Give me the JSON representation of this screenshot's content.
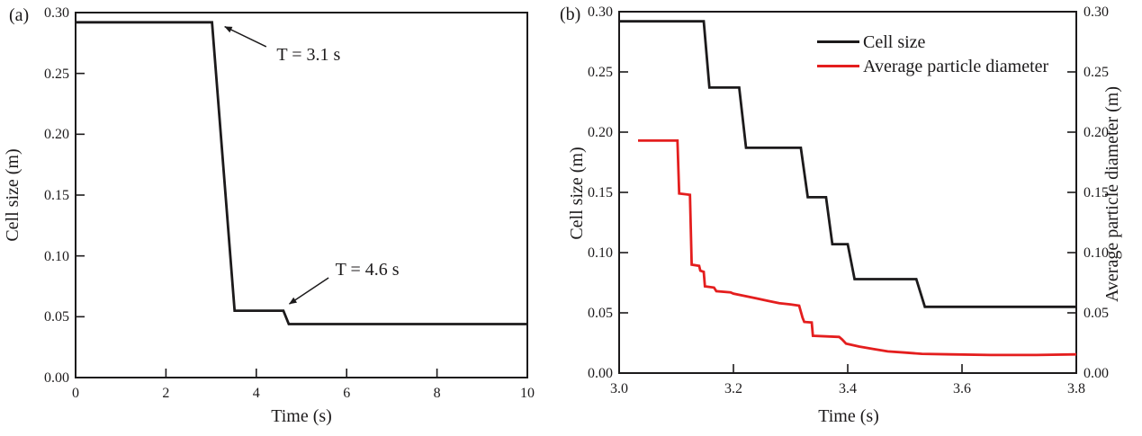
{
  "figure": {
    "panel_tags": [
      "(a)",
      "(b)"
    ],
    "background": "#ffffff",
    "frame_color": "#1c1a1b",
    "text_color": "#1c1a1b"
  },
  "chart_data": [
    {
      "id": "panel-a",
      "type": "line",
      "xlabel": "Time (s)",
      "ylabel": "Cell size (m)",
      "xlim": [
        0,
        10
      ],
      "ylim": [
        0,
        0.3
      ],
      "grid": false,
      "xticks": [
        0,
        2,
        4,
        6,
        8,
        10
      ],
      "xtick_labels": [
        "0",
        "2",
        "4",
        "6",
        "8",
        "10"
      ],
      "yticks": [
        0.0,
        0.05,
        0.1,
        0.15,
        0.2,
        0.25,
        0.3
      ],
      "ytick_labels": [
        "0.00",
        "0.05",
        "0.10",
        "0.15",
        "0.20",
        "0.25",
        "0.30"
      ],
      "right_axis": false,
      "series": [
        {
          "name": "Cell size",
          "color": "#1c1a1b",
          "points": [
            [
              0,
              0.292
            ],
            [
              3.02,
              0.292
            ],
            [
              3.52,
              0.055
            ],
            [
              4.6,
              0.055
            ],
            [
              4.72,
              0.044
            ],
            [
              10,
              0.044
            ]
          ]
        }
      ],
      "annotations": [
        {
          "text": "T = 3.1 s",
          "text_at": [
            4.45,
            0.265
          ],
          "arrow_from": [
            4.22,
            0.272
          ],
          "arrow_to": [
            3.3,
            0.2885
          ]
        },
        {
          "text": "T = 4.6 s",
          "text_at": [
            5.75,
            0.0885
          ],
          "arrow_from": [
            5.6,
            0.082
          ],
          "arrow_to": [
            4.73,
            0.0605
          ]
        }
      ]
    },
    {
      "id": "panel-b",
      "type": "line",
      "xlabel": "Time (s)",
      "ylabel": "Cell size (m)",
      "ylabel_right": "Average particle diameter (m)",
      "xlim": [
        3.0,
        3.8
      ],
      "ylim": [
        0,
        0.3
      ],
      "grid": false,
      "legend_position": "upper right",
      "xticks": [
        3.0,
        3.2,
        3.4,
        3.6,
        3.8
      ],
      "xtick_labels": [
        "3.0",
        "3.2",
        "3.4",
        "3.6",
        "3.8"
      ],
      "yticks": [
        0.0,
        0.05,
        0.1,
        0.15,
        0.2,
        0.25,
        0.3
      ],
      "ytick_labels": [
        "0.00",
        "0.05",
        "0.10",
        "0.15",
        "0.20",
        "0.25",
        "0.30"
      ],
      "right_axis": true,
      "series": [
        {
          "name": "Cell size",
          "color": "#1c1a1b",
          "points": [
            [
              3.0,
              0.292
            ],
            [
              3.148,
              0.292
            ],
            [
              3.158,
              0.237
            ],
            [
              3.21,
              0.237
            ],
            [
              3.222,
              0.187
            ],
            [
              3.318,
              0.187
            ],
            [
              3.33,
              0.146
            ],
            [
              3.362,
              0.146
            ],
            [
              3.373,
              0.107
            ],
            [
              3.4,
              0.107
            ],
            [
              3.412,
              0.078
            ],
            [
              3.52,
              0.078
            ],
            [
              3.535,
              0.055
            ],
            [
              3.8,
              0.055
            ]
          ]
        },
        {
          "name": "Average particle diameter",
          "color": "#e41e1e",
          "points": [
            [
              3.033,
              0.193
            ],
            [
              3.102,
              0.193
            ],
            [
              3.105,
              0.149
            ],
            [
              3.124,
              0.148
            ],
            [
              3.127,
              0.09
            ],
            [
              3.14,
              0.089
            ],
            [
              3.142,
              0.085
            ],
            [
              3.148,
              0.084
            ],
            [
              3.15,
              0.072
            ],
            [
              3.166,
              0.071
            ],
            [
              3.17,
              0.068
            ],
            [
              3.195,
              0.067
            ],
            [
              3.2,
              0.066
            ],
            [
              3.22,
              0.064
            ],
            [
              3.24,
              0.062
            ],
            [
              3.26,
              0.06
            ],
            [
              3.28,
              0.058
            ],
            [
              3.3,
              0.057
            ],
            [
              3.315,
              0.056
            ],
            [
              3.321,
              0.046
            ],
            [
              3.324,
              0.0425
            ],
            [
              3.337,
              0.042
            ],
            [
              3.339,
              0.031
            ],
            [
              3.385,
              0.03
            ],
            [
              3.39,
              0.028
            ],
            [
              3.397,
              0.0245
            ],
            [
              3.42,
              0.022
            ],
            [
              3.445,
              0.02
            ],
            [
              3.47,
              0.018
            ],
            [
              3.5,
              0.017
            ],
            [
              3.53,
              0.016
            ],
            [
              3.58,
              0.0155
            ],
            [
              3.65,
              0.015
            ],
            [
              3.73,
              0.015
            ],
            [
              3.8,
              0.0155
            ]
          ]
        }
      ],
      "annotations": []
    }
  ]
}
